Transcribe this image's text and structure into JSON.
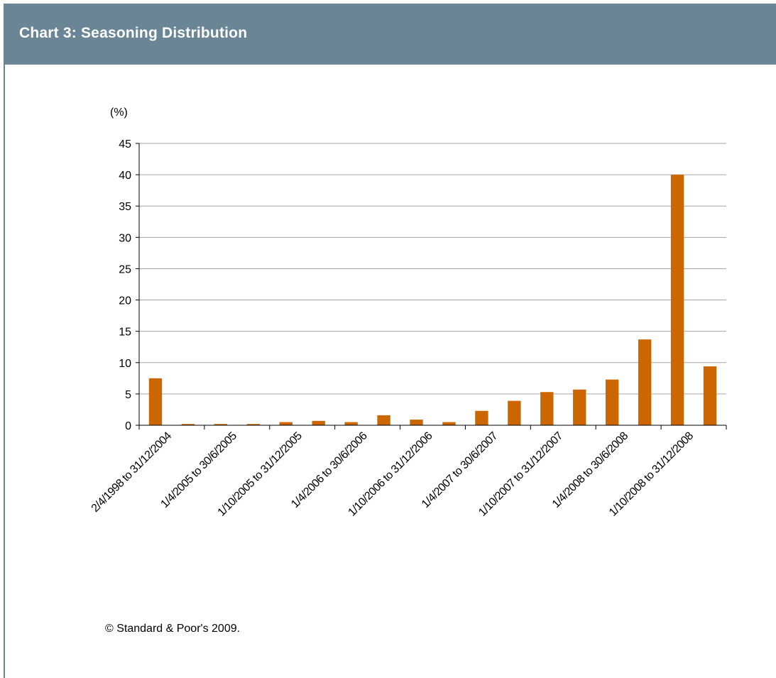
{
  "header": {
    "title": "Chart 3: Seasoning Distribution"
  },
  "footer": {
    "copyright": "© Standard & Poor's 2009."
  },
  "colors": {
    "header_bg": "#6a8595",
    "bar": "#cc6600",
    "gridline": "#a6a6a6",
    "axis": "#000000"
  },
  "chart_data": {
    "type": "bar",
    "title": "",
    "xlabel": "",
    "ylabel": "(%)",
    "ylim": [
      0,
      45
    ],
    "yticks": [
      0,
      5,
      10,
      15,
      20,
      25,
      30,
      35,
      40,
      45
    ],
    "grid": true,
    "tick_labels": [
      "2/4/1998 to 31/12/2004",
      "1/4/2005 to 30/6/2005",
      "1/10/2005 to 31/12/2005",
      "1/4/2006 to 30/6/2006",
      "1/10/2006 to 31/12/2006",
      "1/4/2007 to 30/6/2007",
      "1/10/2007 to 31/12/2007",
      "1/4/2008 to 30/6/2008",
      "1/10/2008 to 31/12/2008"
    ],
    "values": [
      7.5,
      0.2,
      0.2,
      0.2,
      0.5,
      0.7,
      0.5,
      1.6,
      0.9,
      0.5,
      2.3,
      3.9,
      5.3,
      5.7,
      7.3,
      13.7,
      40.0,
      9.4
    ]
  }
}
